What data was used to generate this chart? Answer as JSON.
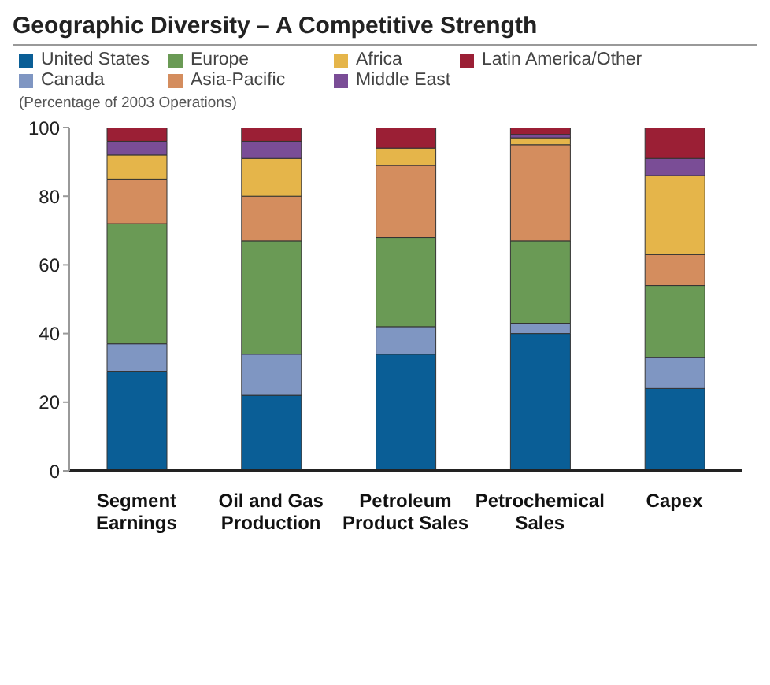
{
  "chart_data": {
    "type": "bar",
    "stacked": true,
    "title": "Geographic Diversity – A Competitive Strength",
    "subtitle": "(Percentage of 2003 Operations)",
    "categories": [
      "Segment Earnings",
      "Oil and Gas Production",
      "Petroleum Product Sales",
      "Petrochemical Sales",
      "Capex"
    ],
    "series": [
      {
        "name": "United States",
        "color": "#0a5e96",
        "values": [
          29,
          22,
          34,
          40,
          24
        ]
      },
      {
        "name": "Canada",
        "color": "#7f96c2",
        "values": [
          8,
          12,
          8,
          3,
          9
        ]
      },
      {
        "name": "Europe",
        "color": "#6a9a55",
        "values": [
          35,
          33,
          26,
          24,
          21
        ]
      },
      {
        "name": "Asia-Pacific",
        "color": "#d48d5e",
        "values": [
          13,
          13,
          21,
          28,
          9
        ]
      },
      {
        "name": "Africa",
        "color": "#e5b54a",
        "values": [
          7,
          11,
          5,
          2,
          23
        ]
      },
      {
        "name": "Middle East",
        "color": "#7a4d96",
        "values": [
          4,
          5,
          0,
          1,
          5
        ]
      },
      {
        "name": "Latin America/Other",
        "color": "#9b1f35",
        "values": [
          4,
          4,
          6,
          2,
          9
        ]
      }
    ],
    "ylim": [
      0,
      100
    ],
    "yticks": [
      0,
      20,
      40,
      60,
      80,
      100
    ],
    "grid": false,
    "legend": "top"
  }
}
